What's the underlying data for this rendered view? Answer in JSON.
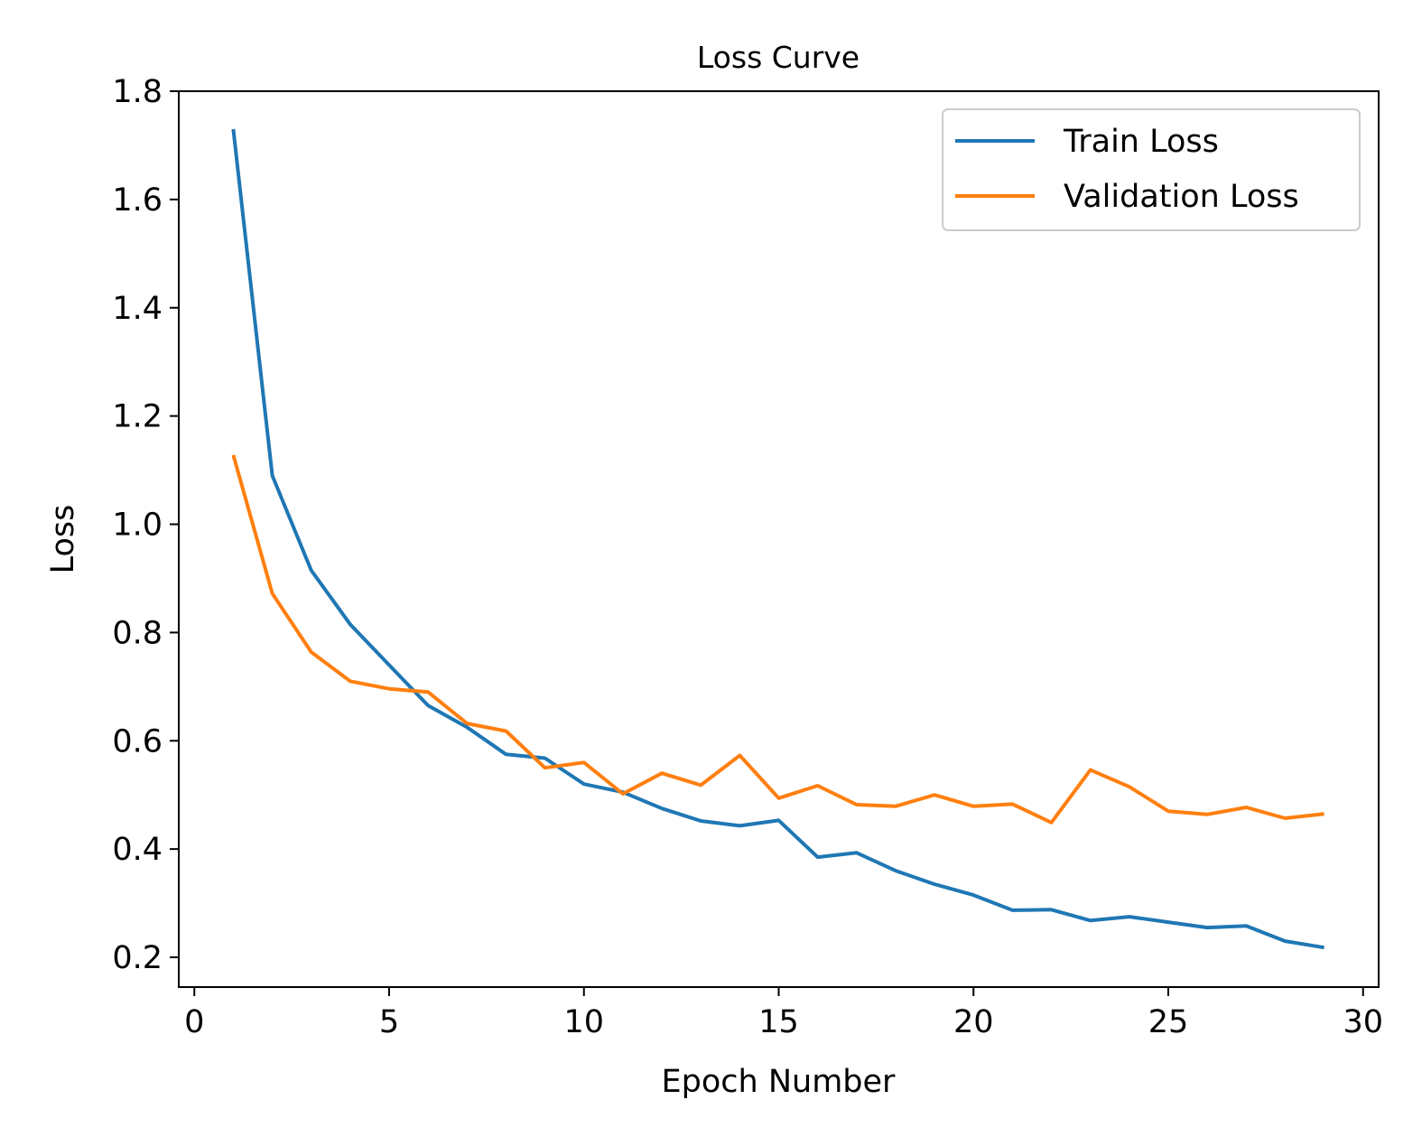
{
  "chart_data": {
    "type": "line",
    "title": "Loss Curve",
    "xlabel": "Epoch Number",
    "ylabel": "Loss",
    "xlim": [
      -0.4,
      30.4
    ],
    "ylim": [
      0.145,
      1.8
    ],
    "xticks": [
      0,
      5,
      10,
      15,
      20,
      25,
      30
    ],
    "yticks": [
      0.2,
      0.4,
      0.6,
      0.8,
      1.0,
      1.2,
      1.4,
      1.6,
      1.8
    ],
    "xtick_labels": [
      "0",
      "5",
      "10",
      "15",
      "20",
      "25",
      "30"
    ],
    "ytick_labels": [
      "0.2",
      "0.4",
      "0.6",
      "0.8",
      "1.0",
      "1.2",
      "1.4",
      "1.6",
      "1.8"
    ],
    "grid": false,
    "legend_position": "top-right",
    "x": [
      1,
      2,
      3,
      4,
      5,
      6,
      7,
      8,
      9,
      10,
      11,
      12,
      13,
      14,
      15,
      16,
      17,
      18,
      19,
      20,
      21,
      22,
      23,
      24,
      25,
      26,
      27,
      28,
      29
    ],
    "series": [
      {
        "name": "Train Loss",
        "color": "#1f77b4",
        "values": [
          1.73,
          1.09,
          0.915,
          0.815,
          0.74,
          0.665,
          0.625,
          0.575,
          0.568,
          0.52,
          0.505,
          0.475,
          0.452,
          0.443,
          0.453,
          0.385,
          0.393,
          0.36,
          0.335,
          0.315,
          0.287,
          0.288,
          0.268,
          0.275,
          0.265,
          0.255,
          0.258,
          0.23,
          0.218
        ]
      },
      {
        "name": "Validation Loss",
        "color": "#ff7f0e",
        "values": [
          1.128,
          0.872,
          0.764,
          0.71,
          0.696,
          0.69,
          0.632,
          0.618,
          0.55,
          0.56,
          0.502,
          0.54,
          0.518,
          0.573,
          0.494,
          0.517,
          0.482,
          0.479,
          0.5,
          0.479,
          0.483,
          0.449,
          0.546,
          0.515,
          0.47,
          0.464,
          0.477,
          0.457,
          0.465
        ]
      }
    ]
  }
}
